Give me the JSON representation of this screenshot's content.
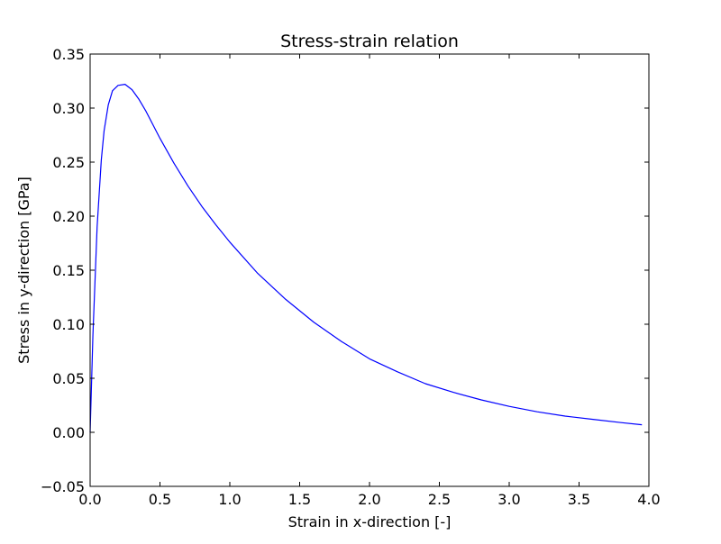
{
  "chart_data": {
    "type": "line",
    "title": "Stress-strain relation",
    "xlabel": "Strain in x-direction [-]",
    "ylabel": "Stress in y-direction [GPa]",
    "xlim": [
      0.0,
      4.0
    ],
    "ylim": [
      -0.05,
      0.35
    ],
    "xticks": [
      "0.0",
      "0.5",
      "1.0",
      "1.5",
      "2.0",
      "2.5",
      "3.0",
      "3.5",
      "4.0"
    ],
    "yticks": [
      "−0.05",
      "0.00",
      "0.05",
      "0.10",
      "0.15",
      "0.20",
      "0.25",
      "0.30",
      "0.35"
    ],
    "xtick_values": [
      0.0,
      0.5,
      1.0,
      1.5,
      2.0,
      2.5,
      3.0,
      3.5,
      4.0
    ],
    "ytick_values": [
      -0.05,
      0.0,
      0.05,
      0.1,
      0.15,
      0.2,
      0.25,
      0.3,
      0.35
    ],
    "grid": false,
    "series": [
      {
        "color": "#0000ff",
        "x": [
          0.0,
          0.02,
          0.05,
          0.08,
          0.1,
          0.13,
          0.16,
          0.2,
          0.25,
          0.3,
          0.35,
          0.4,
          0.5,
          0.6,
          0.7,
          0.8,
          0.9,
          1.0,
          1.2,
          1.4,
          1.6,
          1.8,
          2.0,
          2.2,
          2.4,
          2.6,
          2.8,
          3.0,
          3.2,
          3.4,
          3.6,
          3.8,
          3.95
        ],
        "y": [
          0.0,
          0.09,
          0.19,
          0.252,
          0.279,
          0.303,
          0.316,
          0.321,
          0.322,
          0.317,
          0.308,
          0.297,
          0.272,
          0.249,
          0.228,
          0.209,
          0.192,
          0.176,
          0.147,
          0.123,
          0.102,
          0.084,
          0.068,
          0.056,
          0.045,
          0.037,
          0.03,
          0.024,
          0.019,
          0.015,
          0.012,
          0.009,
          0.007
        ]
      }
    ]
  }
}
